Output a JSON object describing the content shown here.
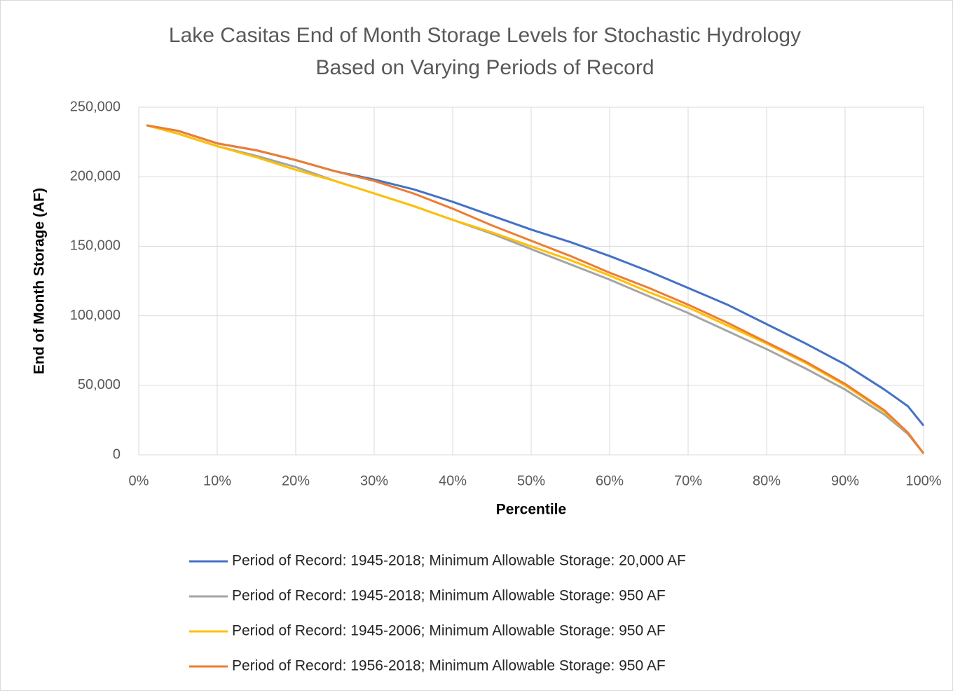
{
  "chart_data": {
    "type": "line",
    "title": [
      "Lake Casitas End of Month Storage Levels for Stochastic Hydrology",
      "Based on Varying Periods of Record"
    ],
    "x_label": "Percentile",
    "y_label": "End of Month Storage (AF)",
    "x": [
      1,
      5,
      10,
      15,
      20,
      25,
      30,
      35,
      40,
      45,
      50,
      55,
      60,
      65,
      70,
      75,
      80,
      85,
      90,
      95,
      98,
      100
    ],
    "series": [
      {
        "name": "Period of Record: 1945-2018; Minimum Allowable Storage: 20,000 AF",
        "color": "#4472c4",
        "values": [
          237000,
          233000,
          224000,
          219000,
          212000,
          204000,
          198000,
          191000,
          182000,
          172000,
          162000,
          153000,
          143000,
          132000,
          120000,
          108000,
          94000,
          80000,
          65000,
          47000,
          35000,
          21000
        ]
      },
      {
        "name": "Period of Record: 1945-2018; Minimum Allowable Storage: 950 AF",
        "color": "#a5a5a5",
        "values": [
          237000,
          231000,
          222000,
          215000,
          207000,
          197000,
          188000,
          179000,
          169000,
          159000,
          148000,
          137000,
          126000,
          114000,
          102000,
          89000,
          76000,
          62000,
          47000,
          29000,
          15000,
          1000
        ]
      },
      {
        "name": "Period of Record: 1945-2006; Minimum Allowable Storage: 950 AF",
        "color": "#ffc000",
        "values": [
          237000,
          231000,
          222000,
          214000,
          205000,
          197000,
          188000,
          179000,
          169000,
          160000,
          150000,
          140000,
          129000,
          117000,
          106000,
          93000,
          80000,
          66000,
          50000,
          31000,
          16000,
          1000
        ]
      },
      {
        "name": "Period of Record: 1956-2018; Minimum Allowable Storage: 950 AF",
        "color": "#ed7d31",
        "values": [
          237000,
          233000,
          224000,
          219000,
          212000,
          204000,
          197000,
          188000,
          177000,
          165000,
          154000,
          143000,
          131000,
          120000,
          108000,
          95000,
          81000,
          67000,
          51000,
          32000,
          16000,
          1000
        ]
      }
    ],
    "xlim": [
      0,
      100
    ],
    "xticks": [
      {
        "value": 0,
        "label": "0%"
      },
      {
        "value": 10,
        "label": "10%"
      },
      {
        "value": 20,
        "label": "20%"
      },
      {
        "value": 30,
        "label": "30%"
      },
      {
        "value": 40,
        "label": "40%"
      },
      {
        "value": 50,
        "label": "50%"
      },
      {
        "value": 60,
        "label": "60%"
      },
      {
        "value": 70,
        "label": "70%"
      },
      {
        "value": 80,
        "label": "80%"
      },
      {
        "value": 90,
        "label": "90%"
      },
      {
        "value": 100,
        "label": "100%"
      }
    ],
    "ylim": [
      0,
      250000
    ],
    "yticks": [
      0,
      {
        "value": 50000,
        "label": "50,000"
      },
      {
        "value": 100000,
        "label": "100,000"
      },
      {
        "value": 150000,
        "label": "150,000"
      },
      {
        "value": 200000,
        "label": "200,000"
      },
      {
        "value": 250000,
        "label": "250,000"
      }
    ],
    "grid": true,
    "legend": "bottom"
  }
}
